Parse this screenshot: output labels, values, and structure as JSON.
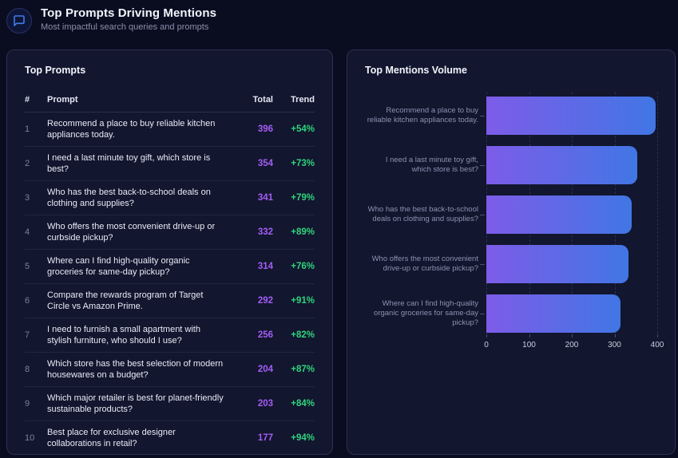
{
  "header": {
    "title": "Top Prompts Driving Mentions",
    "subtitle": "Most impactful search queries and prompts",
    "icon": "chat-bubble-icon"
  },
  "colors": {
    "icon_accent": "#3f7ceb",
    "total_purple": "#a45df5",
    "trend_green": "#2fd47d",
    "bar_gradient_start": "#7d5ce8",
    "bar_gradient_end": "#4176e5"
  },
  "top_prompts": {
    "title": "Top Prompts",
    "columns": [
      "#",
      "Prompt",
      "Total",
      "Trend"
    ],
    "rows": [
      {
        "rank": 1,
        "prompt": "Recommend a place to buy reliable kitchen appliances today.",
        "total": 396,
        "trend": "+54%"
      },
      {
        "rank": 2,
        "prompt": "I need a last minute toy gift, which store is best?",
        "total": 354,
        "trend": "+73%"
      },
      {
        "rank": 3,
        "prompt": "Who has the best back-to-school deals on clothing and supplies?",
        "total": 341,
        "trend": "+79%"
      },
      {
        "rank": 4,
        "prompt": "Who offers the most convenient drive-up or curbside pickup?",
        "total": 332,
        "trend": "+89%"
      },
      {
        "rank": 5,
        "prompt": "Where can I find high-quality organic groceries for same-day pickup?",
        "total": 314,
        "trend": "+76%"
      },
      {
        "rank": 6,
        "prompt": "Compare the rewards program of Target Circle vs Amazon Prime.",
        "total": 292,
        "trend": "+91%"
      },
      {
        "rank": 7,
        "prompt": "I need to furnish a small apartment with stylish furniture, who should I use?",
        "total": 256,
        "trend": "+82%"
      },
      {
        "rank": 8,
        "prompt": "Which store has the best selection of modern housewares on a budget?",
        "total": 204,
        "trend": "+87%"
      },
      {
        "rank": 9,
        "prompt": "Which major retailer is best for planet-friendly sustainable products?",
        "total": 203,
        "trend": "+84%"
      },
      {
        "rank": 10,
        "prompt": "Best place for exclusive designer collaborations in retail?",
        "total": 177,
        "trend": "+94%"
      }
    ]
  },
  "chart_data": {
    "type": "bar",
    "orientation": "horizontal",
    "title": "Top Mentions Volume",
    "categories": [
      "Recommend a place to buy reliable kitchen appliances today.",
      "I need a last minute toy gift, which store is best?",
      "Who has the best back-to-school deals on clothing and supplies?",
      "Who offers the most convenient drive-up or curbside pickup?",
      "Where can I find high-quality organic groceries for same-day pickup?"
    ],
    "values": [
      396,
      354,
      341,
      332,
      314
    ],
    "xlim": [
      0,
      400
    ],
    "xticks": [
      0,
      100,
      200,
      300,
      400
    ],
    "grid": "vertical-dashed",
    "legend": "none",
    "bar_gradient": [
      "#7d5ce8",
      "#4176e5"
    ]
  }
}
